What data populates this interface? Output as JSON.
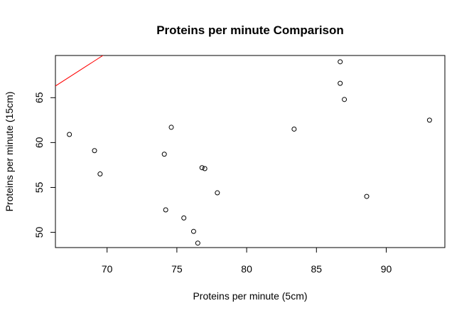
{
  "chart_data": {
    "type": "scatter",
    "title": "Proteins per minute Comparison",
    "xlabel": "Proteins per minute (5cm)",
    "ylabel": "Proteins per minute (15cm)",
    "xlim": [
      66.3,
      94.2
    ],
    "ylim": [
      48.3,
      69.7
    ],
    "x_ticks": [
      70,
      75,
      80,
      85,
      90
    ],
    "y_ticks": [
      50,
      55,
      60,
      65
    ],
    "grid": false,
    "legend": "none",
    "points_color": "#000000",
    "reference_line": {
      "color": "#ff0000",
      "slope": 1,
      "intercept": 0
    },
    "points": [
      {
        "x": 67.3,
        "y": 60.9
      },
      {
        "x": 69.1,
        "y": 59.1
      },
      {
        "x": 69.5,
        "y": 56.5
      },
      {
        "x": 74.1,
        "y": 58.7
      },
      {
        "x": 74.6,
        "y": 61.7
      },
      {
        "x": 74.2,
        "y": 52.5
      },
      {
        "x": 75.5,
        "y": 51.6
      },
      {
        "x": 76.2,
        "y": 50.1
      },
      {
        "x": 76.5,
        "y": 48.8
      },
      {
        "x": 76.8,
        "y": 57.2
      },
      {
        "x": 77.0,
        "y": 57.1
      },
      {
        "x": 77.9,
        "y": 54.4
      },
      {
        "x": 83.4,
        "y": 61.5
      },
      {
        "x": 86.7,
        "y": 69.0
      },
      {
        "x": 86.7,
        "y": 66.6
      },
      {
        "x": 87.0,
        "y": 64.8
      },
      {
        "x": 88.6,
        "y": 54.0
      },
      {
        "x": 93.1,
        "y": 62.5
      }
    ]
  }
}
